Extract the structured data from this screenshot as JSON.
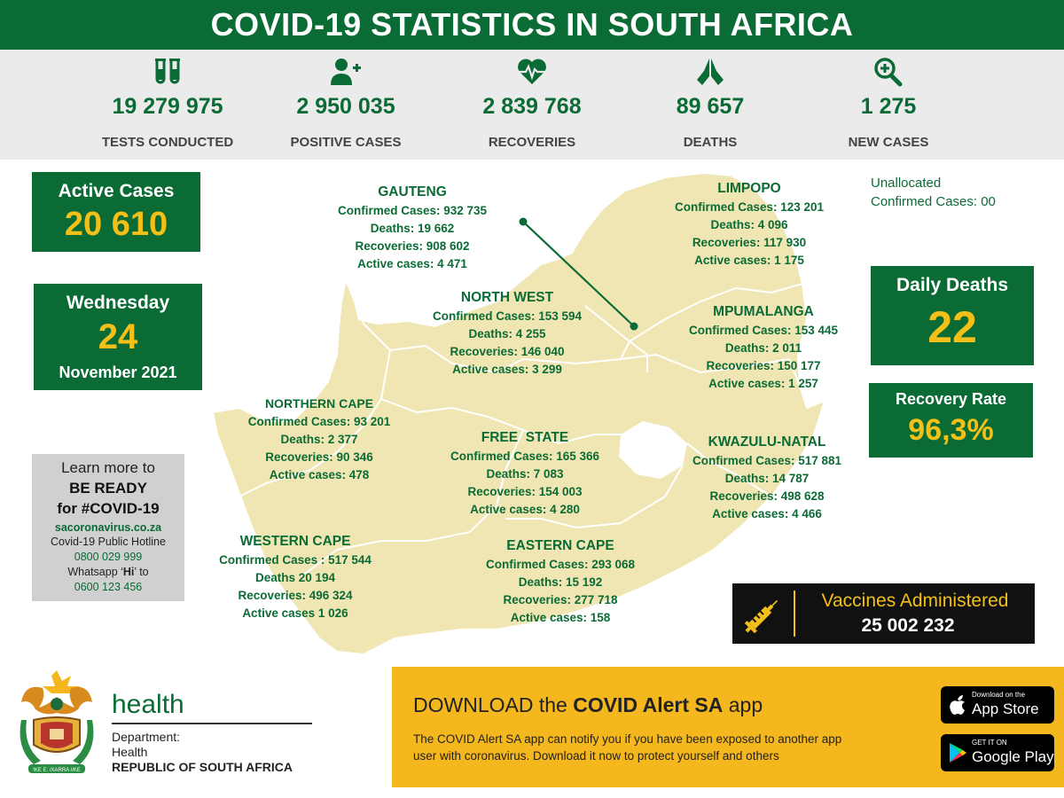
{
  "title": "COVID-19 STATISTICS IN SOUTH AFRICA",
  "stats": [
    {
      "icon": "test-tubes-icon",
      "value": "19 279 975",
      "label": "TESTS CONDUCTED"
    },
    {
      "icon": "add-user-icon",
      "value": "2 950 035",
      "label": "POSITIVE CASES"
    },
    {
      "icon": "heartbeat-icon",
      "value": "2 839 768",
      "label": "RECOVERIES"
    },
    {
      "icon": "praying-hands-icon",
      "value": "89 657",
      "label": "DEATHS"
    },
    {
      "icon": "zoom-in-icon",
      "value": "1 275",
      "label": "NEW CASES"
    }
  ],
  "active_cases": {
    "label": "Active Cases",
    "value": "20 610"
  },
  "date": {
    "weekday": "Wednesday",
    "day": "24",
    "month_year": "November 2021"
  },
  "unallocated": {
    "line1": "Unallocated",
    "line2": "Confirmed Cases: 00"
  },
  "daily_deaths": {
    "label": "Daily Deaths",
    "value": "22"
  },
  "recovery_rate": {
    "label": "Recovery Rate",
    "value": "96,3%"
  },
  "provinces": {
    "gauteng": {
      "name": "GAUTENG",
      "confirmed": "Confirmed Cases: 932 735",
      "deaths": "Deaths: 19 662",
      "recoveries": "Recoveries: 908 602",
      "active": "Active cases: 4 471"
    },
    "limpopo": {
      "name": "LIMPOPO",
      "confirmed": "Confirmed Cases: 123 201",
      "deaths": "Deaths:  4 096",
      "recoveries": "Recoveries: 117 930",
      "active": "Active cases: 1 175"
    },
    "north_west": {
      "name": "NORTH WEST",
      "confirmed": "Confirmed Cases: 153 594",
      "deaths": "Deaths: 4 255",
      "recoveries": "Recoveries: 146 040",
      "active": "Active cases: 3 299"
    },
    "mpumalanga": {
      "name": "MPUMALANGA",
      "confirmed": "Confirmed Cases: 153 445",
      "deaths": "Deaths:  2 011",
      "recoveries": "Recoveries: 150 177",
      "active": "Active cases: 1 257"
    },
    "northern_cape": {
      "name": "NORTHERN CAPE",
      "confirmed": "Confirmed Cases:  93 201",
      "deaths": "Deaths: 2 377",
      "recoveries": "Recoveries: 90 346",
      "active": "Active cases: 478"
    },
    "free_state": {
      "name": "FREE  STATE",
      "confirmed": "Confirmed Cases: 165 366",
      "deaths": "Deaths: 7 083",
      "recoveries": "Recoveries: 154 003",
      "active": "Active cases: 4 280"
    },
    "kwazulu_natal": {
      "name": "KWAZULU-NATAL",
      "confirmed": "Confirmed Cases: 517 881",
      "deaths": "Deaths: 14 787",
      "recoveries": "Recoveries: 498 628",
      "active": "Active cases: 4 466"
    },
    "western_cape": {
      "name": "WESTERN CAPE",
      "confirmed": "Confirmed Cases : 517 544",
      "deaths": "Deaths 20 194",
      "recoveries": "Recoveries: 496 324",
      "active": "Active cases 1 026"
    },
    "eastern_cape": {
      "name": "EASTERN CAPE",
      "confirmed": "Confirmed Cases: 293 068",
      "deaths": "Deaths: 15 192",
      "recoveries": "Recoveries: 277 718",
      "active": "Active cases: 158"
    }
  },
  "ready": {
    "line1": "Learn more to",
    "line2": "BE READY",
    "line3": "for #COVID-19",
    "site": "sacoronavirus.co.za",
    "hotline_label": "Covid-19 Public Hotline",
    "hotline": "0800 029 999",
    "whatsapp_pre": "Whatsapp ‘",
    "whatsapp_hi": "Hi",
    "whatsapp_post": "’ to",
    "whatsapp_number": "0600 123 456"
  },
  "vaccines": {
    "label": "Vaccines Administered",
    "value": "25 002 232"
  },
  "department": {
    "brand": "health",
    "line1": "Department:",
    "line2": "Health",
    "line3": "REPUBLIC OF SOUTH AFRICA",
    "motto": "!KE E: /XARRA //KE"
  },
  "download": {
    "pre": "DOWNLOAD the ",
    "app": "COVID Alert SA",
    "post": " app",
    "body_line1": "The COVID Alert SA app can notify you if you have been exposed to another app",
    "body_line2": "user with coronavirus. Download it now to protect yourself and others",
    "appstore_small": "Download on the",
    "appstore_big": "App Store",
    "play_small": "GET IT ON",
    "play_big": "Google Play"
  },
  "colors": {
    "brand_green": "#0b6b35",
    "accent_yellow": "#f2c018",
    "map_fill": "#f0e6b3",
    "banner_yellow": "#f4b71d"
  }
}
